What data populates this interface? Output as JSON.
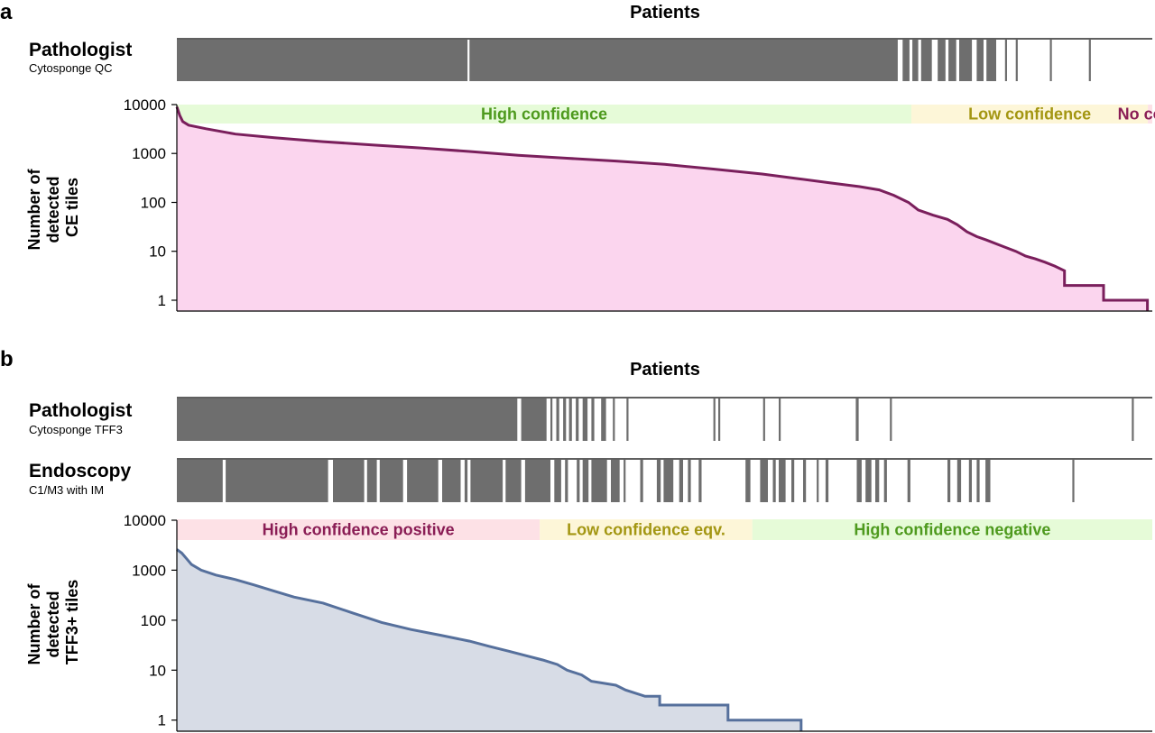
{
  "colors": {
    "ce_line": "#7a1f5c",
    "ce_fill": "#fbd5ee",
    "tff3_line": "#56709c",
    "tff3_fill": "#d7dce6",
    "bar": "#6e6e6e",
    "high_bg": "#e6fbd8",
    "high_text": "#4e9a1e",
    "low_bg": "#fdf6d8",
    "low_text": "#a39612",
    "no_bg": "#fde1e6",
    "no_text": "#8a1d55"
  },
  "panel_a": {
    "label": "a",
    "title": "Patients",
    "row_name": "Pathologist",
    "row_sub": "Cytosponge QC",
    "ylabel": [
      "Number of",
      "detected",
      "CE tiles"
    ],
    "bands": [
      {
        "label": "High confidence",
        "from": 0,
        "to": 0.753,
        "kind": "high"
      },
      {
        "label": "Low confidence",
        "from": 0.753,
        "to": 0.9955,
        "kind": "low"
      },
      {
        "label": "No conf.",
        "from": 0.9955,
        "to": 1.12,
        "kind": "no"
      }
    ],
    "segments": [
      [
        0,
        0.298
      ],
      [
        0.3,
        0.739
      ],
      [
        0.744,
        0.751
      ],
      [
        0.754,
        0.76
      ],
      [
        0.763,
        0.774
      ],
      [
        0.78,
        0.788
      ],
      [
        0.791,
        0.799
      ],
      [
        0.802,
        0.815
      ],
      [
        0.82,
        0.827
      ],
      [
        0.83,
        0.84
      ],
      [
        0.849,
        0.851
      ],
      [
        0.86,
        0.862
      ],
      [
        0.895,
        0.897
      ],
      [
        0.935,
        0.937
      ]
    ]
  },
  "panel_b": {
    "label": "b",
    "title": "Patients",
    "row1_name": "Pathologist",
    "row1_sub": "Cytosponge TFF3",
    "row2_name": "Endoscopy",
    "row2_sub": "C1/M3 with IM",
    "ylabel": [
      "Number of",
      "detected",
      "TFF3+ tiles"
    ],
    "bands": [
      {
        "label": "High confidence positive",
        "from": 0,
        "to": 0.372,
        "kind": "no"
      },
      {
        "label": "Low confidence eqv.",
        "from": 0.372,
        "to": 0.59,
        "kind": "low"
      },
      {
        "label": "High confidence negative",
        "from": 0.59,
        "to": 1.0,
        "kind": "high"
      }
    ],
    "segments1": [
      [
        0,
        0.349
      ],
      [
        0.353,
        0.379
      ],
      [
        0.383,
        0.385
      ],
      [
        0.389,
        0.392
      ],
      [
        0.396,
        0.399
      ],
      [
        0.402,
        0.405
      ],
      [
        0.409,
        0.412
      ],
      [
        0.416,
        0.421
      ],
      [
        0.425,
        0.428
      ],
      [
        0.435,
        0.44
      ],
      [
        0.447,
        0.449
      ],
      [
        0.461,
        0.463
      ],
      [
        0.55,
        0.552
      ],
      [
        0.555,
        0.557
      ],
      [
        0.601,
        0.603
      ],
      [
        0.617,
        0.619
      ],
      [
        0.696,
        0.699
      ],
      [
        0.731,
        0.733
      ],
      [
        0.979,
        0.981
      ]
    ],
    "segments2": [
      [
        0,
        0.047
      ],
      [
        0.05,
        0.155
      ],
      [
        0.16,
        0.192
      ],
      [
        0.195,
        0.205
      ],
      [
        0.208,
        0.232
      ],
      [
        0.236,
        0.268
      ],
      [
        0.272,
        0.291
      ],
      [
        0.295,
        0.298
      ],
      [
        0.301,
        0.334
      ],
      [
        0.337,
        0.353
      ],
      [
        0.357,
        0.383
      ],
      [
        0.387,
        0.394
      ],
      [
        0.398,
        0.401
      ],
      [
        0.41,
        0.413
      ],
      [
        0.416,
        0.422
      ],
      [
        0.425,
        0.441
      ],
      [
        0.445,
        0.454
      ],
      [
        0.458,
        0.46
      ],
      [
        0.475,
        0.478
      ],
      [
        0.492,
        0.496
      ],
      [
        0.499,
        0.509
      ],
      [
        0.515,
        0.519
      ],
      [
        0.524,
        0.527
      ],
      [
        0.535,
        0.538
      ],
      [
        0.583,
        0.588
      ],
      [
        0.598,
        0.606
      ],
      [
        0.611,
        0.614
      ],
      [
        0.617,
        0.624
      ],
      [
        0.63,
        0.633
      ],
      [
        0.642,
        0.645
      ],
      [
        0.656,
        0.658
      ],
      [
        0.665,
        0.668
      ],
      [
        0.697,
        0.702
      ],
      [
        0.706,
        0.712
      ],
      [
        0.716,
        0.72
      ],
      [
        0.725,
        0.728
      ],
      [
        0.749,
        0.752
      ],
      [
        0.79,
        0.793
      ],
      [
        0.8,
        0.804
      ],
      [
        0.812,
        0.815
      ],
      [
        0.82,
        0.823
      ],
      [
        0.829,
        0.834
      ],
      [
        0.918,
        0.92
      ]
    ]
  },
  "chart_data": [
    {
      "type": "area",
      "panel": "a",
      "xlabel": "Patients",
      "ylabel": "Number of detected CE tiles",
      "yscale": "log",
      "ylim": [
        0.6,
        10000
      ],
      "yticks": [
        1,
        10,
        100,
        1000,
        10000
      ],
      "xlim": [
        0,
        1
      ],
      "x": [
        0.0,
        0.003,
        0.006,
        0.012,
        0.03,
        0.06,
        0.1,
        0.15,
        0.2,
        0.25,
        0.3,
        0.35,
        0.4,
        0.45,
        0.5,
        0.55,
        0.6,
        0.64,
        0.67,
        0.7,
        0.72,
        0.735,
        0.75,
        0.76,
        0.775,
        0.79,
        0.8,
        0.81,
        0.82,
        0.83,
        0.845,
        0.86,
        0.87,
        0.88,
        0.89,
        0.9,
        0.91,
        0.91,
        0.95,
        0.95,
        0.995,
        0.995
      ],
      "series": [
        {
          "values": [
            9000,
            6000,
            4500,
            3800,
            3200,
            2500,
            2100,
            1750,
            1500,
            1300,
            1100,
            920,
            800,
            700,
            600,
            480,
            380,
            300,
            250,
            210,
            180,
            140,
            100,
            70,
            55,
            45,
            35,
            25,
            20,
            17,
            13,
            10,
            8,
            7,
            6,
            5,
            4,
            2,
            2,
            1,
            1,
            0.6
          ]
        }
      ]
    },
    {
      "type": "area",
      "panel": "b",
      "xlabel": "Patients",
      "ylabel": "Number of detected TFF3+ tiles",
      "yscale": "log",
      "ylim": [
        0.6,
        10000
      ],
      "yticks": [
        1,
        10,
        100,
        1000,
        10000
      ],
      "xlim": [
        0,
        1
      ],
      "x": [
        0.0,
        0.005,
        0.01,
        0.015,
        0.025,
        0.04,
        0.06,
        0.08,
        0.1,
        0.12,
        0.15,
        0.18,
        0.21,
        0.24,
        0.27,
        0.3,
        0.32,
        0.34,
        0.36,
        0.375,
        0.39,
        0.4,
        0.415,
        0.425,
        0.45,
        0.46,
        0.48,
        0.495,
        0.495,
        0.565,
        0.565,
        0.64,
        0.64
      ],
      "series": [
        {
          "values": [
            2600,
            2200,
            1700,
            1300,
            1000,
            800,
            650,
            500,
            380,
            290,
            220,
            140,
            90,
            65,
            50,
            38,
            30,
            24,
            19,
            16,
            13,
            10,
            8,
            6,
            5,
            4,
            3,
            3,
            2,
            2,
            1,
            1,
            0.6
          ]
        }
      ]
    }
  ]
}
